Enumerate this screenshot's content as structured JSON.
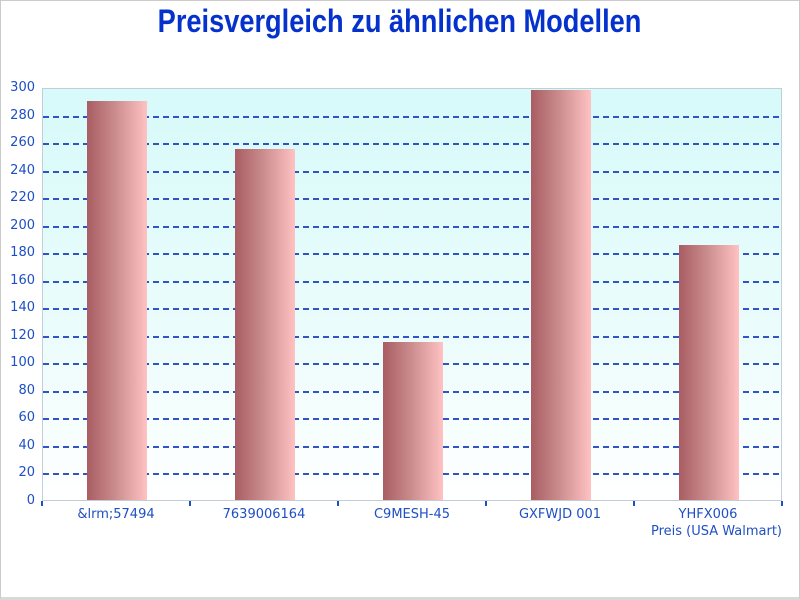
{
  "page": {
    "kind": "price-comparison-bar-chart"
  },
  "chart_data": {
    "type": "bar",
    "title": "Preisvergleich zu ähnlichen Modellen",
    "categories": [
      "&lrm;57494",
      "7639006164",
      "C9MESH-45",
      "GXFWJD 001",
      "YHFX006"
    ],
    "values": [
      290,
      255,
      115,
      298,
      185
    ],
    "xlabel": "Preis (USA Walmart)",
    "ylabel": "",
    "ylim": [
      0,
      300
    ],
    "ytick_step": 20,
    "grid": "horizontal-dashed",
    "legend": "none",
    "colors": {
      "title_text": "#0532cd",
      "axis_text": "#1e4fc4",
      "gridline": "#3154c4",
      "plot_bg_top": "#d7fafa",
      "plot_bg_bottom": "#ffffff",
      "plot_border": "#c2cfd8",
      "bar_gradient_left": "#a85d61",
      "bar_gradient_right": "#ffc2c2"
    }
  }
}
